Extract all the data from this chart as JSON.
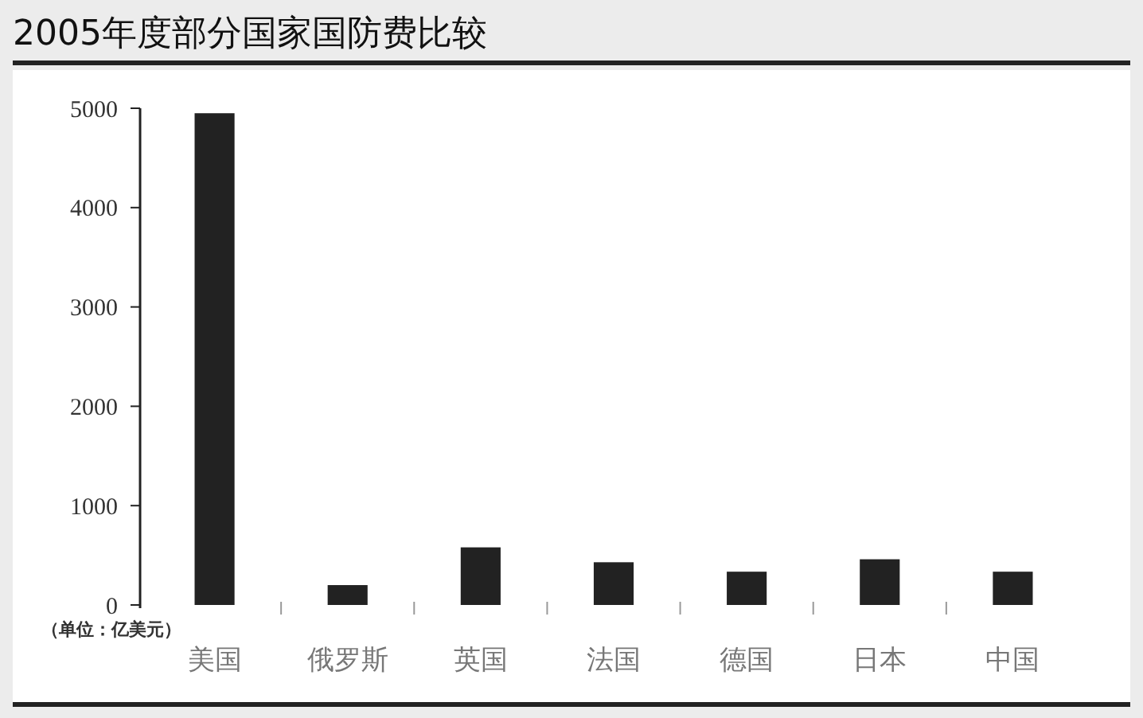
{
  "chart_data": {
    "type": "bar",
    "title": "2005年度部分国家国防费比较",
    "annotations": [
      "（单位：亿美元）"
    ],
    "categories": [
      "美国",
      "俄罗斯",
      "英国",
      "法国",
      "德国",
      "日本",
      "中国"
    ],
    "values": [
      4950,
      200,
      580,
      430,
      335,
      460,
      335
    ],
    "color": "#222222",
    "ylim": [
      0,
      5000
    ],
    "yticks": [
      0,
      1000,
      2000,
      3000,
      4000,
      5000
    ],
    "grid": false
  }
}
